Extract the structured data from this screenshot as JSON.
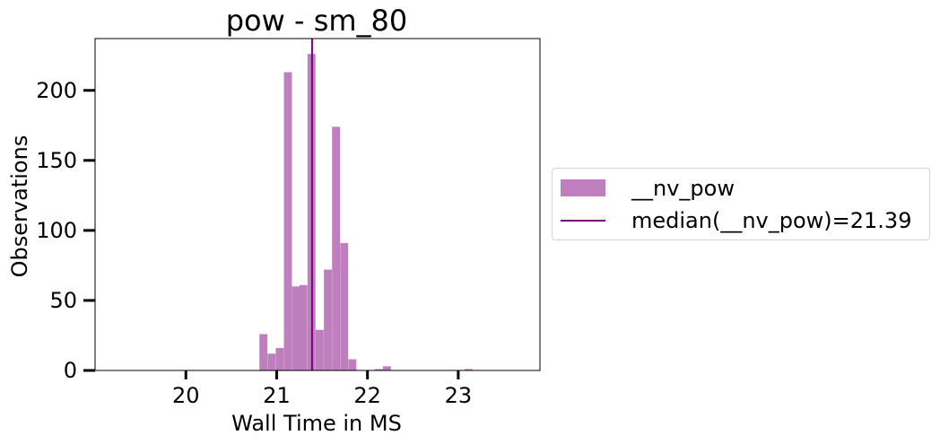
{
  "chart_data": {
    "type": "bar",
    "title": "pow - sm_80",
    "xlabel": "Wall Time in MS",
    "ylabel": "Observations",
    "xlim": [
      19.0,
      23.9
    ],
    "ylim": [
      0,
      237
    ],
    "xticks": [
      20,
      21,
      22,
      23
    ],
    "yticks": [
      0,
      50,
      100,
      150,
      200
    ],
    "bin_width": 0.088,
    "series": [
      {
        "name": "__nv_pow",
        "color": "#bf7fbf",
        "bins": [
          {
            "x0": 20.81,
            "value": 26
          },
          {
            "x0": 20.9,
            "value": 12
          },
          {
            "x0": 20.99,
            "value": 16
          },
          {
            "x0": 21.08,
            "value": 213
          },
          {
            "x0": 21.17,
            "value": 60
          },
          {
            "x0": 21.25,
            "value": 61
          },
          {
            "x0": 21.34,
            "value": 226
          },
          {
            "x0": 21.43,
            "value": 29
          },
          {
            "x0": 21.52,
            "value": 72
          },
          {
            "x0": 21.61,
            "value": 174
          },
          {
            "x0": 21.7,
            "value": 91
          },
          {
            "x0": 21.79,
            "value": 8
          },
          {
            "x0": 22.08,
            "value": 1
          },
          {
            "x0": 22.17,
            "value": 3
          },
          {
            "x0": 23.07,
            "value": 1
          }
        ]
      }
    ],
    "median": {
      "name": "median(__nv_pow)=21.39",
      "value": 21.39,
      "color": "#800080"
    },
    "legend_position": "right-outside"
  }
}
